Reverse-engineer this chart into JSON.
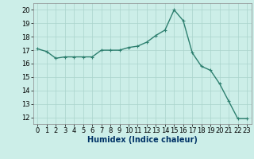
{
  "x": [
    0,
    1,
    2,
    3,
    4,
    5,
    6,
    7,
    8,
    9,
    10,
    11,
    12,
    13,
    14,
    15,
    16,
    17,
    18,
    19,
    20,
    21,
    22,
    23
  ],
  "y": [
    17.1,
    16.9,
    16.4,
    16.5,
    16.5,
    16.5,
    16.5,
    17.0,
    17.0,
    17.0,
    17.2,
    17.3,
    17.6,
    18.1,
    18.5,
    20.0,
    19.2,
    16.8,
    15.8,
    15.5,
    14.5,
    13.2,
    11.9,
    11.9
  ],
  "xlabel": "Humidex (Indice chaleur)",
  "line_color": "#2d7f6f",
  "marker": "+",
  "bg_color": "#cceee8",
  "grid_color": "#aad4cc",
  "ylim": [
    11.5,
    20.5
  ],
  "xlim": [
    -0.5,
    23.5
  ],
  "yticks": [
    12,
    13,
    14,
    15,
    16,
    17,
    18,
    19,
    20
  ],
  "xticks": [
    0,
    1,
    2,
    3,
    4,
    5,
    6,
    7,
    8,
    9,
    10,
    11,
    12,
    13,
    14,
    15,
    16,
    17,
    18,
    19,
    20,
    21,
    22,
    23
  ],
  "xlabel_color": "#003366",
  "xlabel_fontsize": 7,
  "tick_fontsize": 6,
  "marker_size": 3,
  "linewidth": 1.0
}
